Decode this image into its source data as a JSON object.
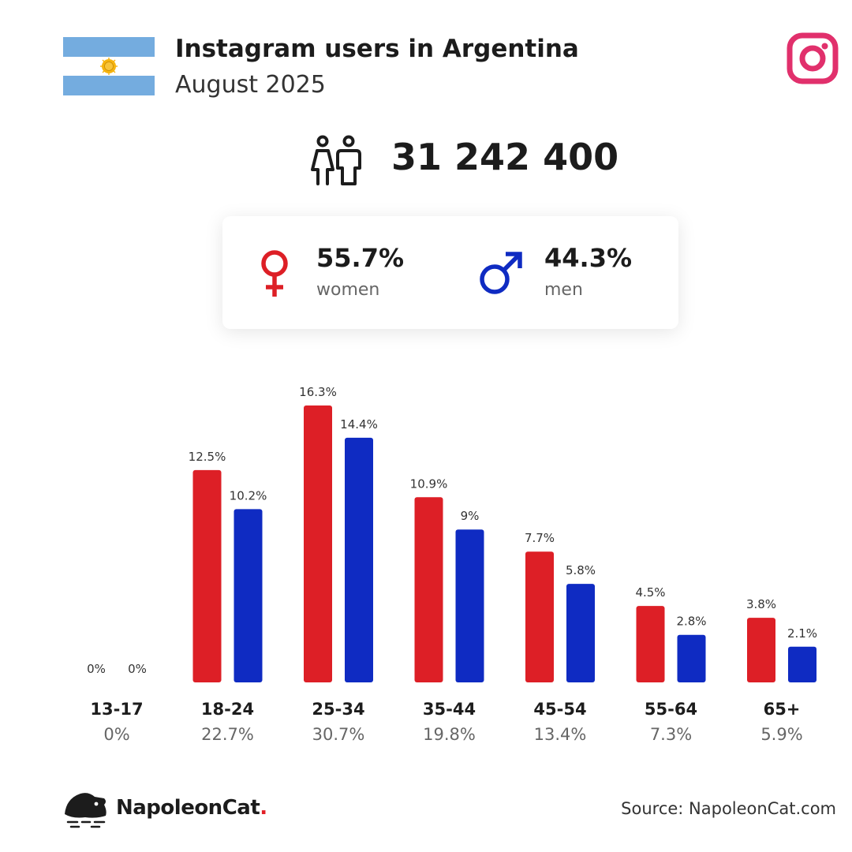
{
  "header": {
    "title": "Instagram users in Argentina",
    "subtitle": "August 2025"
  },
  "total_users": "31 242 400",
  "gender": {
    "women": {
      "pct": "55.7%",
      "label": "women"
    },
    "men": {
      "pct": "44.3%",
      "label": "men"
    }
  },
  "colors": {
    "women": "#dd1f26",
    "men": "#0f2bc2",
    "instagram": "#e1306c",
    "flag_blue": "#74acdf"
  },
  "icons": [
    "argentina-flag-icon",
    "instagram-icon",
    "people-icon",
    "female-icon",
    "male-icon",
    "napoleoncat-logo-icon"
  ],
  "chart_data": {
    "type": "bar",
    "categories": [
      "13-17",
      "18-24",
      "25-34",
      "35-44",
      "45-54",
      "55-64",
      "65+"
    ],
    "category_totals": [
      "0%",
      "22.7%",
      "30.7%",
      "19.8%",
      "13.4%",
      "7.3%",
      "5.9%"
    ],
    "series": [
      {
        "values": [
          0,
          12.5,
          16.3,
          10.9,
          7.7,
          4.5,
          3.8
        ],
        "labels": [
          "0%",
          "12.5%",
          "16.3%",
          "10.9%",
          "7.7%",
          "4.5%",
          "3.8%"
        ],
        "color": "#dd1f26"
      },
      {
        "values": [
          0,
          10.2,
          14.4,
          9,
          5.8,
          2.8,
          2.1
        ],
        "labels": [
          "0%",
          "10.2%",
          "14.4%",
          "9%",
          "5.8%",
          "2.8%",
          "2.1%"
        ],
        "color": "#0f2bc2"
      }
    ],
    "ylim": [
      0,
      16.3
    ]
  },
  "footer": {
    "brand": "NapoleonCat",
    "brand_dot": ".",
    "source": "Source: NapoleonCat.com"
  }
}
